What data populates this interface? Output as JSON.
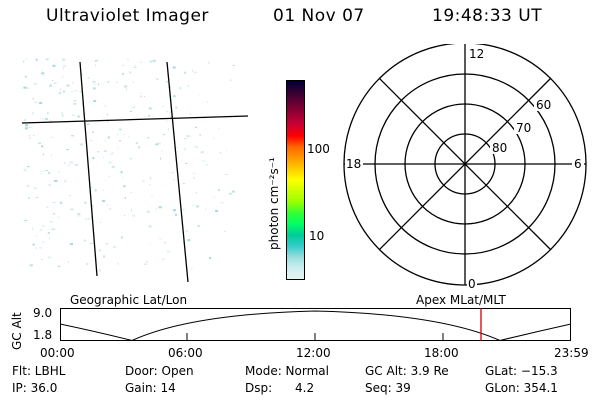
{
  "header": {
    "instrument": "Ultraviolet Imager",
    "date": "01 Nov 07",
    "time": "19:48:33 UT"
  },
  "colorbar": {
    "unit_label": "photon cm⁻²s⁻¹",
    "tick_labels": [
      "100",
      "10"
    ],
    "colors": [
      "#000033",
      "#330033",
      "#660033",
      "#990033",
      "#cc0033",
      "#ff0000",
      "#ff6600",
      "#ff9900",
      "#ffcc00",
      "#ffff00",
      "#ccff00",
      "#99ff00",
      "#33ff33",
      "#00ff66",
      "#00cc99",
      "#33cccc",
      "#99dddd",
      "#cceeee",
      "#e8f4f4"
    ]
  },
  "polar_plot": {
    "mlt_labels": [
      "12",
      "18",
      "6",
      "0"
    ],
    "lat_labels": [
      "60",
      "70",
      "80"
    ]
  },
  "labels": {
    "geographic": "Geographic Lat/Lon",
    "apex": "Apex MLat/MLT"
  },
  "timeline": {
    "axis_label": "GC Alt",
    "y_top": "9.0",
    "y_bottom": "1.8",
    "time_ticks": [
      "00:00",
      "06:00",
      "12:00",
      "18:00",
      "23:59"
    ]
  },
  "info": {
    "flt": "Flt: LBHL",
    "door": "Door: Open",
    "mode": "Mode: Normal",
    "gc_alt": "GC Alt: 3.9 Re",
    "glat": "GLat: −15.3",
    "ip": "IP: 36.0",
    "gain": "Gain: 14",
    "dsp": "Dsp:      4.2",
    "seq": "Seq: 39",
    "glon": "GLon: 354.1"
  }
}
